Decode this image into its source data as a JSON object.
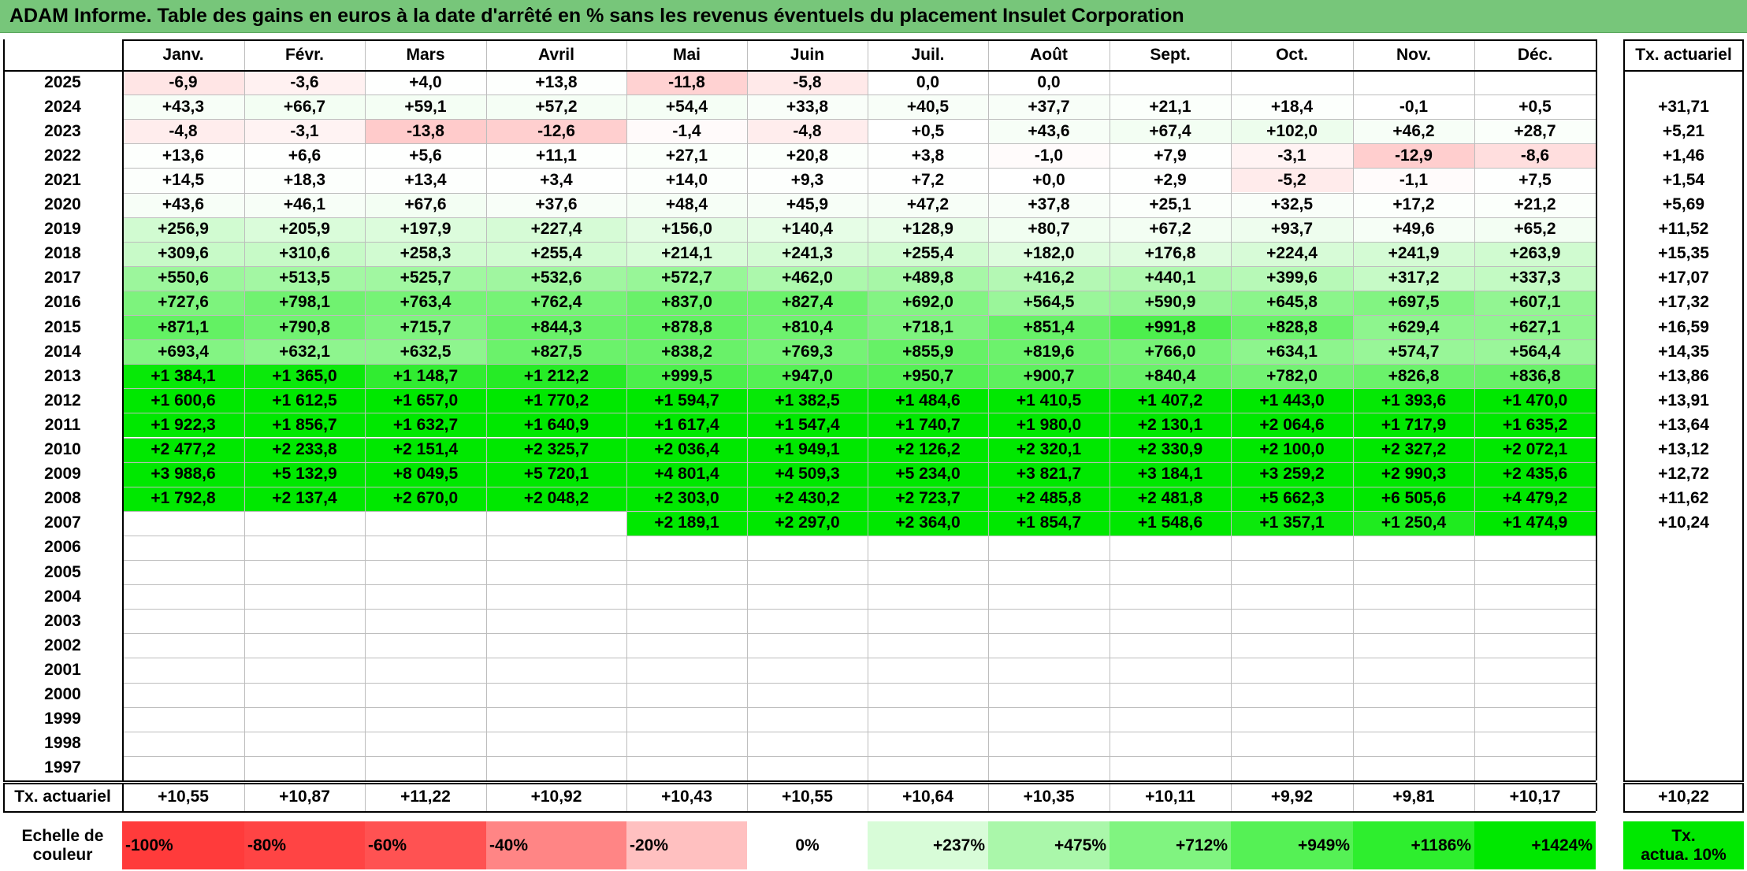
{
  "title": "ADAM Informe. Table des gains en euros à la date d'arrêté en % sans les revenus éventuels du placement Insulet Corporation",
  "months": [
    "Janv.",
    "Févr.",
    "Mars",
    "Avril",
    "Mai",
    "Juin",
    "Juil.",
    "Août",
    "Sept.",
    "Oct.",
    "Nov.",
    "Déc."
  ],
  "tx_header": "Tx. actuariel",
  "rows": [
    {
      "year": "2025",
      "values": [
        "-6,9",
        "-3,6",
        "+4,0",
        "+13,8",
        "-11,8",
        "-5,8",
        "0,0",
        "0,0",
        "",
        "",
        "",
        ""
      ],
      "tx": ""
    },
    {
      "year": "2024",
      "values": [
        "+43,3",
        "+66,7",
        "+59,1",
        "+57,2",
        "+54,4",
        "+33,8",
        "+40,5",
        "+37,7",
        "+21,1",
        "+18,4",
        "-0,1",
        "+0,5"
      ],
      "tx": "+31,71"
    },
    {
      "year": "2023",
      "values": [
        "-4,8",
        "-3,1",
        "-13,8",
        "-12,6",
        "-1,4",
        "-4,8",
        "+0,5",
        "+43,6",
        "+67,4",
        "+102,0",
        "+46,2",
        "+28,7"
      ],
      "tx": "+5,21"
    },
    {
      "year": "2022",
      "values": [
        "+13,6",
        "+6,6",
        "+5,6",
        "+11,1",
        "+27,1",
        "+20,8",
        "+3,8",
        "-1,0",
        "+7,9",
        "-3,1",
        "-12,9",
        "-8,6"
      ],
      "tx": "+1,46"
    },
    {
      "year": "2021",
      "values": [
        "+14,5",
        "+18,3",
        "+13,4",
        "+3,4",
        "+14,0",
        "+9,3",
        "+7,2",
        "+0,0",
        "+2,9",
        "-5,2",
        "-1,1",
        "+7,5"
      ],
      "tx": "+1,54"
    },
    {
      "year": "2020",
      "values": [
        "+43,6",
        "+46,1",
        "+67,6",
        "+37,6",
        "+48,4",
        "+45,9",
        "+47,2",
        "+37,8",
        "+25,1",
        "+32,5",
        "+17,2",
        "+21,2"
      ],
      "tx": "+5,69"
    },
    {
      "year": "2019",
      "values": [
        "+256,9",
        "+205,9",
        "+197,9",
        "+227,4",
        "+156,0",
        "+140,4",
        "+128,9",
        "+80,7",
        "+67,2",
        "+93,7",
        "+49,6",
        "+65,2"
      ],
      "tx": "+11,52"
    },
    {
      "year": "2018",
      "values": [
        "+309,6",
        "+310,6",
        "+258,3",
        "+255,4",
        "+214,1",
        "+241,3",
        "+255,4",
        "+182,0",
        "+176,8",
        "+224,4",
        "+241,9",
        "+263,9"
      ],
      "tx": "+15,35"
    },
    {
      "year": "2017",
      "values": [
        "+550,6",
        "+513,5",
        "+525,7",
        "+532,6",
        "+572,7",
        "+462,0",
        "+489,8",
        "+416,2",
        "+440,1",
        "+399,6",
        "+317,2",
        "+337,3"
      ],
      "tx": "+17,07"
    },
    {
      "year": "2016",
      "values": [
        "+727,6",
        "+798,1",
        "+763,4",
        "+762,4",
        "+837,0",
        "+827,4",
        "+692,0",
        "+564,5",
        "+590,9",
        "+645,8",
        "+697,5",
        "+607,1"
      ],
      "tx": "+17,32"
    },
    {
      "year": "2015",
      "values": [
        "+871,1",
        "+790,8",
        "+715,7",
        "+844,3",
        "+878,8",
        "+810,4",
        "+718,1",
        "+851,4",
        "+991,8",
        "+828,8",
        "+629,4",
        "+627,1"
      ],
      "tx": "+16,59"
    },
    {
      "year": "2014",
      "values": [
        "+693,4",
        "+632,1",
        "+632,5",
        "+827,5",
        "+838,2",
        "+769,3",
        "+855,9",
        "+819,6",
        "+766,0",
        "+634,1",
        "+574,7",
        "+564,4"
      ],
      "tx": "+14,35"
    },
    {
      "year": "2013",
      "values": [
        "+1 384,1",
        "+1 365,0",
        "+1 148,7",
        "+1 212,2",
        "+999,5",
        "+947,0",
        "+950,7",
        "+900,7",
        "+840,4",
        "+782,0",
        "+826,8",
        "+836,8"
      ],
      "tx": "+13,86"
    },
    {
      "year": "2012",
      "values": [
        "+1 600,6",
        "+1 612,5",
        "+1 657,0",
        "+1 770,2",
        "+1 594,7",
        "+1 382,5",
        "+1 484,6",
        "+1 410,5",
        "+1 407,2",
        "+1 443,0",
        "+1 393,6",
        "+1 470,0"
      ],
      "tx": "+13,91"
    },
    {
      "year": "2011",
      "values": [
        "+1 922,3",
        "+1 856,7",
        "+1 632,7",
        "+1 640,9",
        "+1 617,4",
        "+1 547,4",
        "+1 740,7",
        "+1 980,0",
        "+2 130,1",
        "+2 064,6",
        "+1 717,9",
        "+1 635,2"
      ],
      "tx": "+13,64"
    },
    {
      "year": "2010",
      "values": [
        "+2 477,2",
        "+2 233,8",
        "+2 151,4",
        "+2 325,7",
        "+2 036,4",
        "+1 949,1",
        "+2 126,2",
        "+2 320,1",
        "+2 330,9",
        "+2 100,0",
        "+2 327,2",
        "+2 072,1"
      ],
      "tx": "+13,12"
    },
    {
      "year": "2009",
      "values": [
        "+3 988,6",
        "+5 132,9",
        "+8 049,5",
        "+5 720,1",
        "+4 801,4",
        "+4 509,3",
        "+5 234,0",
        "+3 821,7",
        "+3 184,1",
        "+3 259,2",
        "+2 990,3",
        "+2 435,6"
      ],
      "tx": "+12,72"
    },
    {
      "year": "2008",
      "values": [
        "+1 792,8",
        "+2 137,4",
        "+2 670,0",
        "+2 048,2",
        "+2 303,0",
        "+2 430,2",
        "+2 723,7",
        "+2 485,8",
        "+2 481,8",
        "+5 662,3",
        "+6 505,6",
        "+4 479,2"
      ],
      "tx": "+11,62"
    },
    {
      "year": "2007",
      "values": [
        "",
        "",
        "",
        "",
        "+2 189,1",
        "+2 297,0",
        "+2 364,0",
        "+1 854,7",
        "+1 548,6",
        "+1 357,1",
        "+1 250,4",
        "+1 474,9"
      ],
      "tx": "+10,24"
    },
    {
      "year": "2006",
      "values": [
        "",
        "",
        "",
        "",
        "",
        "",
        "",
        "",
        "",
        "",
        "",
        ""
      ],
      "tx": ""
    },
    {
      "year": "2005",
      "values": [
        "",
        "",
        "",
        "",
        "",
        "",
        "",
        "",
        "",
        "",
        "",
        ""
      ],
      "tx": ""
    },
    {
      "year": "2004",
      "values": [
        "",
        "",
        "",
        "",
        "",
        "",
        "",
        "",
        "",
        "",
        "",
        ""
      ],
      "tx": ""
    },
    {
      "year": "2003",
      "values": [
        "",
        "",
        "",
        "",
        "",
        "",
        "",
        "",
        "",
        "",
        "",
        ""
      ],
      "tx": ""
    },
    {
      "year": "2002",
      "values": [
        "",
        "",
        "",
        "",
        "",
        "",
        "",
        "",
        "",
        "",
        "",
        ""
      ],
      "tx": ""
    },
    {
      "year": "2001",
      "values": [
        "",
        "",
        "",
        "",
        "",
        "",
        "",
        "",
        "",
        "",
        "",
        ""
      ],
      "tx": ""
    },
    {
      "year": "2000",
      "values": [
        "",
        "",
        "",
        "",
        "",
        "",
        "",
        "",
        "",
        "",
        "",
        ""
      ],
      "tx": ""
    },
    {
      "year": "1999",
      "values": [
        "",
        "",
        "",
        "",
        "",
        "",
        "",
        "",
        "",
        "",
        "",
        ""
      ],
      "tx": ""
    },
    {
      "year": "1998",
      "values": [
        "",
        "",
        "",
        "",
        "",
        "",
        "",
        "",
        "",
        "",
        "",
        ""
      ],
      "tx": ""
    },
    {
      "year": "1997",
      "values": [
        "",
        "",
        "",
        "",
        "",
        "",
        "",
        "",
        "",
        "",
        "",
        ""
      ],
      "tx": ""
    }
  ],
  "footer": {
    "label": "Tx. actuariel",
    "values": [
      "+10,55",
      "+10,87",
      "+11,22",
      "+10,92",
      "+10,43",
      "+10,55",
      "+10,64",
      "+10,35",
      "+10,11",
      "+9,92",
      "+9,81",
      "+10,17"
    ],
    "tx": "+10,22"
  },
  "scale": {
    "label_line1": "Echelle de",
    "label_line2": "couleur",
    "items": [
      {
        "text": "-100%",
        "color": "#ff3b3b"
      },
      {
        "text": "-80%",
        "color": "#ff4444"
      },
      {
        "text": "-60%",
        "color": "#ff5252"
      },
      {
        "text": "-40%",
        "color": "#ff8585"
      },
      {
        "text": "-20%",
        "color": "#ffc0c0"
      },
      {
        "text": "0%",
        "color": "#ffffff"
      },
      {
        "text": "+237%",
        "color": "#d8fcd8"
      },
      {
        "text": "+475%",
        "color": "#aaf7aa"
      },
      {
        "text": "+712%",
        "color": "#80f480"
      },
      {
        "text": "+949%",
        "color": "#55f155"
      },
      {
        "text": "+1186%",
        "color": "#2eee2e"
      },
      {
        "text": "+1424%",
        "color": "#00e800"
      }
    ],
    "tx_line1": "Tx.",
    "tx_line2": "actua. 10%",
    "tx_color": "#00e800"
  },
  "colors": {
    "title_bg": "#77c67a",
    "negative_max": "#ff3b3b",
    "positive_max": "#00e800"
  }
}
